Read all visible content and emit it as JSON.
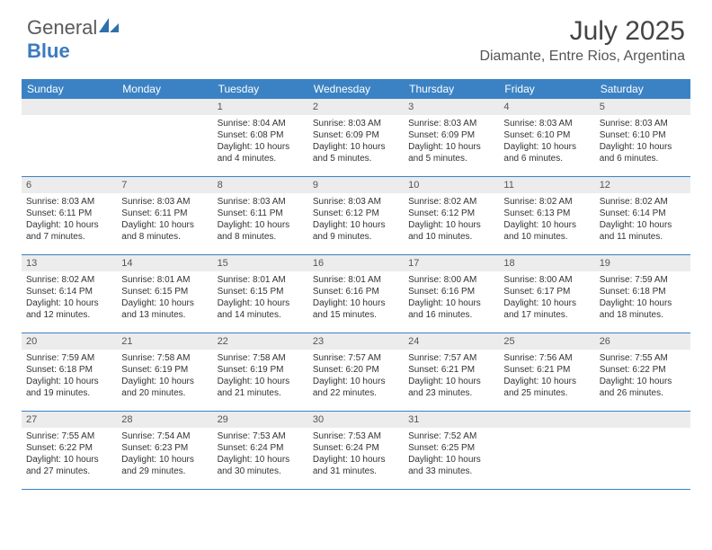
{
  "logo": {
    "text1": "General",
    "text2": "Blue"
  },
  "title": "July 2025",
  "location": "Diamante, Entre Rios, Argentina",
  "header_color": "#3b82c4",
  "day_names": [
    "Sunday",
    "Monday",
    "Tuesday",
    "Wednesday",
    "Thursday",
    "Friday",
    "Saturday"
  ],
  "weeks": [
    [
      null,
      null,
      {
        "n": "1",
        "sr": "Sunrise: 8:04 AM",
        "ss": "Sunset: 6:08 PM",
        "d1": "Daylight: 10 hours",
        "d2": "and 4 minutes."
      },
      {
        "n": "2",
        "sr": "Sunrise: 8:03 AM",
        "ss": "Sunset: 6:09 PM",
        "d1": "Daylight: 10 hours",
        "d2": "and 5 minutes."
      },
      {
        "n": "3",
        "sr": "Sunrise: 8:03 AM",
        "ss": "Sunset: 6:09 PM",
        "d1": "Daylight: 10 hours",
        "d2": "and 5 minutes."
      },
      {
        "n": "4",
        "sr": "Sunrise: 8:03 AM",
        "ss": "Sunset: 6:10 PM",
        "d1": "Daylight: 10 hours",
        "d2": "and 6 minutes."
      },
      {
        "n": "5",
        "sr": "Sunrise: 8:03 AM",
        "ss": "Sunset: 6:10 PM",
        "d1": "Daylight: 10 hours",
        "d2": "and 6 minutes."
      }
    ],
    [
      {
        "n": "6",
        "sr": "Sunrise: 8:03 AM",
        "ss": "Sunset: 6:11 PM",
        "d1": "Daylight: 10 hours",
        "d2": "and 7 minutes."
      },
      {
        "n": "7",
        "sr": "Sunrise: 8:03 AM",
        "ss": "Sunset: 6:11 PM",
        "d1": "Daylight: 10 hours",
        "d2": "and 8 minutes."
      },
      {
        "n": "8",
        "sr": "Sunrise: 8:03 AM",
        "ss": "Sunset: 6:11 PM",
        "d1": "Daylight: 10 hours",
        "d2": "and 8 minutes."
      },
      {
        "n": "9",
        "sr": "Sunrise: 8:03 AM",
        "ss": "Sunset: 6:12 PM",
        "d1": "Daylight: 10 hours",
        "d2": "and 9 minutes."
      },
      {
        "n": "10",
        "sr": "Sunrise: 8:02 AM",
        "ss": "Sunset: 6:12 PM",
        "d1": "Daylight: 10 hours",
        "d2": "and 10 minutes."
      },
      {
        "n": "11",
        "sr": "Sunrise: 8:02 AM",
        "ss": "Sunset: 6:13 PM",
        "d1": "Daylight: 10 hours",
        "d2": "and 10 minutes."
      },
      {
        "n": "12",
        "sr": "Sunrise: 8:02 AM",
        "ss": "Sunset: 6:14 PM",
        "d1": "Daylight: 10 hours",
        "d2": "and 11 minutes."
      }
    ],
    [
      {
        "n": "13",
        "sr": "Sunrise: 8:02 AM",
        "ss": "Sunset: 6:14 PM",
        "d1": "Daylight: 10 hours",
        "d2": "and 12 minutes."
      },
      {
        "n": "14",
        "sr": "Sunrise: 8:01 AM",
        "ss": "Sunset: 6:15 PM",
        "d1": "Daylight: 10 hours",
        "d2": "and 13 minutes."
      },
      {
        "n": "15",
        "sr": "Sunrise: 8:01 AM",
        "ss": "Sunset: 6:15 PM",
        "d1": "Daylight: 10 hours",
        "d2": "and 14 minutes."
      },
      {
        "n": "16",
        "sr": "Sunrise: 8:01 AM",
        "ss": "Sunset: 6:16 PM",
        "d1": "Daylight: 10 hours",
        "d2": "and 15 minutes."
      },
      {
        "n": "17",
        "sr": "Sunrise: 8:00 AM",
        "ss": "Sunset: 6:16 PM",
        "d1": "Daylight: 10 hours",
        "d2": "and 16 minutes."
      },
      {
        "n": "18",
        "sr": "Sunrise: 8:00 AM",
        "ss": "Sunset: 6:17 PM",
        "d1": "Daylight: 10 hours",
        "d2": "and 17 minutes."
      },
      {
        "n": "19",
        "sr": "Sunrise: 7:59 AM",
        "ss": "Sunset: 6:18 PM",
        "d1": "Daylight: 10 hours",
        "d2": "and 18 minutes."
      }
    ],
    [
      {
        "n": "20",
        "sr": "Sunrise: 7:59 AM",
        "ss": "Sunset: 6:18 PM",
        "d1": "Daylight: 10 hours",
        "d2": "and 19 minutes."
      },
      {
        "n": "21",
        "sr": "Sunrise: 7:58 AM",
        "ss": "Sunset: 6:19 PM",
        "d1": "Daylight: 10 hours",
        "d2": "and 20 minutes."
      },
      {
        "n": "22",
        "sr": "Sunrise: 7:58 AM",
        "ss": "Sunset: 6:19 PM",
        "d1": "Daylight: 10 hours",
        "d2": "and 21 minutes."
      },
      {
        "n": "23",
        "sr": "Sunrise: 7:57 AM",
        "ss": "Sunset: 6:20 PM",
        "d1": "Daylight: 10 hours",
        "d2": "and 22 minutes."
      },
      {
        "n": "24",
        "sr": "Sunrise: 7:57 AM",
        "ss": "Sunset: 6:21 PM",
        "d1": "Daylight: 10 hours",
        "d2": "and 23 minutes."
      },
      {
        "n": "25",
        "sr": "Sunrise: 7:56 AM",
        "ss": "Sunset: 6:21 PM",
        "d1": "Daylight: 10 hours",
        "d2": "and 25 minutes."
      },
      {
        "n": "26",
        "sr": "Sunrise: 7:55 AM",
        "ss": "Sunset: 6:22 PM",
        "d1": "Daylight: 10 hours",
        "d2": "and 26 minutes."
      }
    ],
    [
      {
        "n": "27",
        "sr": "Sunrise: 7:55 AM",
        "ss": "Sunset: 6:22 PM",
        "d1": "Daylight: 10 hours",
        "d2": "and 27 minutes."
      },
      {
        "n": "28",
        "sr": "Sunrise: 7:54 AM",
        "ss": "Sunset: 6:23 PM",
        "d1": "Daylight: 10 hours",
        "d2": "and 29 minutes."
      },
      {
        "n": "29",
        "sr": "Sunrise: 7:53 AM",
        "ss": "Sunset: 6:24 PM",
        "d1": "Daylight: 10 hours",
        "d2": "and 30 minutes."
      },
      {
        "n": "30",
        "sr": "Sunrise: 7:53 AM",
        "ss": "Sunset: 6:24 PM",
        "d1": "Daylight: 10 hours",
        "d2": "and 31 minutes."
      },
      {
        "n": "31",
        "sr": "Sunrise: 7:52 AM",
        "ss": "Sunset: 6:25 PM",
        "d1": "Daylight: 10 hours",
        "d2": "and 33 minutes."
      },
      null,
      null
    ]
  ]
}
